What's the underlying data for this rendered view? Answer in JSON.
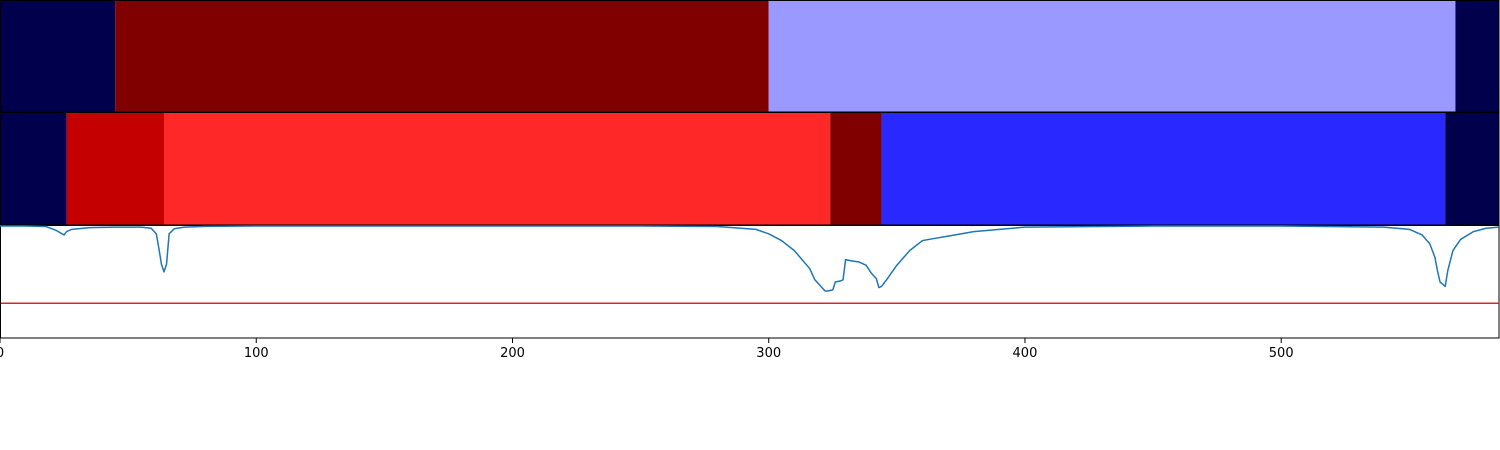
{
  "chart_data": [
    {
      "type": "segment-bar",
      "xlim": [
        0,
        585
      ],
      "segments": [
        {
          "start": 0,
          "end": 45,
          "color": "#00004c"
        },
        {
          "start": 45,
          "end": 300,
          "color": "#800000"
        },
        {
          "start": 300,
          "end": 568,
          "color": "#9999ff"
        },
        {
          "start": 568,
          "end": 585,
          "color": "#00004c"
        }
      ]
    },
    {
      "type": "segment-bar",
      "xlim": [
        0,
        585
      ],
      "segments": [
        {
          "start": 0,
          "end": 26,
          "color": "#00004c"
        },
        {
          "start": 26,
          "end": 64,
          "color": "#c40000"
        },
        {
          "start": 64,
          "end": 324,
          "color": "#ff2828"
        },
        {
          "start": 324,
          "end": 344,
          "color": "#800000"
        },
        {
          "start": 344,
          "end": 564,
          "color": "#2828ff"
        },
        {
          "start": 564,
          "end": 585,
          "color": "#00004c"
        }
      ]
    },
    {
      "type": "line",
      "xlim": [
        0,
        585
      ],
      "ylim": [
        0,
        1
      ],
      "xticks": [
        0,
        100,
        200,
        300,
        400,
        500
      ],
      "threshold": 0.31,
      "threshold_color": "#d62728",
      "line_color": "#1f77b4",
      "x": [
        0,
        10,
        18,
        22,
        25,
        26,
        28,
        35,
        45,
        55,
        59,
        61,
        62,
        63,
        64,
        65,
        66,
        68,
        72,
        80,
        100,
        150,
        200,
        250,
        280,
        295,
        300,
        305,
        310,
        313,
        316,
        318,
        320,
        322,
        323,
        325,
        326,
        328,
        329,
        330,
        332,
        335,
        338,
        340,
        342,
        343,
        344,
        346,
        350,
        355,
        360,
        365,
        370,
        380,
        400,
        450,
        500,
        540,
        550,
        555,
        558,
        560,
        561,
        562,
        563,
        564,
        565,
        567,
        570,
        575,
        580,
        585
      ],
      "y": [
        1.0,
        1.0,
        0.995,
        0.96,
        0.92,
        0.95,
        0.97,
        0.985,
        0.99,
        0.99,
        0.98,
        0.93,
        0.8,
        0.66,
        0.59,
        0.66,
        0.93,
        0.975,
        0.99,
        0.997,
        1.0,
        1.0,
        1.0,
        1.0,
        0.995,
        0.97,
        0.93,
        0.87,
        0.78,
        0.7,
        0.62,
        0.52,
        0.47,
        0.42,
        0.42,
        0.43,
        0.5,
        0.51,
        0.52,
        0.7,
        0.69,
        0.68,
        0.65,
        0.58,
        0.53,
        0.45,
        0.46,
        0.52,
        0.65,
        0.78,
        0.87,
        0.89,
        0.91,
        0.95,
        0.99,
        1.0,
        1.0,
        0.99,
        0.97,
        0.92,
        0.84,
        0.72,
        0.6,
        0.5,
        0.48,
        0.46,
        0.6,
        0.78,
        0.88,
        0.95,
        0.98,
        0.99
      ]
    }
  ]
}
